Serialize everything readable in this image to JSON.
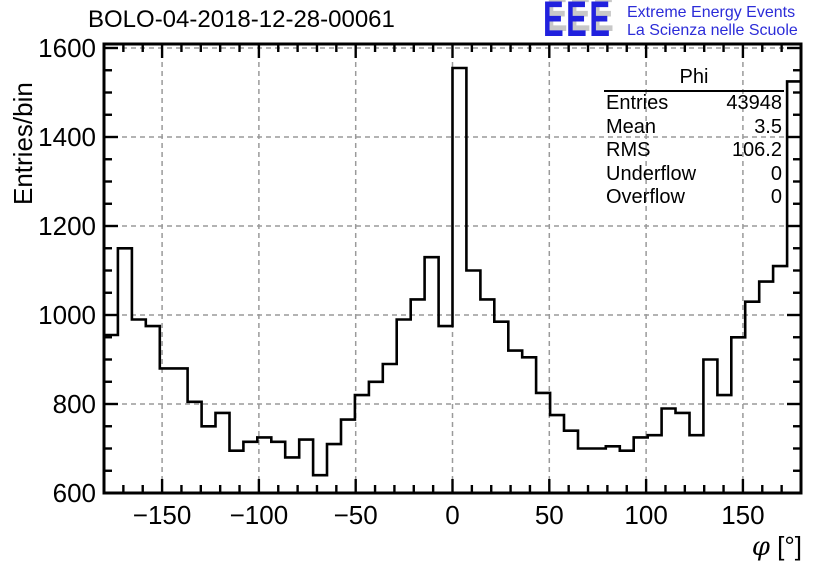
{
  "title": "BOLO-04-2018-12-28-00061",
  "logo": {
    "acronym": "EEE",
    "line1": "Extreme Energy Events",
    "line2": "La Scienza nelle Scuole",
    "acronym_color": "#2121de",
    "text_color": "#2c2cd8"
  },
  "stats": {
    "title": "Phi",
    "rows": [
      {
        "label": "Entries",
        "value": "43948"
      },
      {
        "label": "Mean",
        "value": "3.5"
      },
      {
        "label": "RMS",
        "value": "106.2"
      },
      {
        "label": "Underflow",
        "value": "0"
      },
      {
        "label": "Overflow",
        "value": "0"
      }
    ]
  },
  "chart_data": {
    "type": "bar",
    "style": "step-histogram",
    "title": "BOLO-04-2018-12-28-00061",
    "xlabel": "φ [°]",
    "xlabel_parts": {
      "symbol": "φ",
      "units": " [°]"
    },
    "ylabel": "Entries/bin",
    "xlim": [
      -180,
      180
    ],
    "ylim": [
      600,
      1609
    ],
    "bin_start": -180,
    "bin_width": 7.2,
    "values": [
      955,
      1150,
      990,
      975,
      880,
      880,
      805,
      750,
      780,
      695,
      715,
      725,
      715,
      680,
      720,
      640,
      710,
      765,
      820,
      850,
      890,
      990,
      1035,
      1130,
      975,
      1555,
      1100,
      1035,
      985,
      920,
      905,
      825,
      775,
      740,
      700,
      700,
      705,
      695,
      725,
      730,
      790,
      780,
      730,
      900,
      820,
      950,
      1030,
      1075,
      1110,
      1525
    ],
    "xticks": {
      "major": [
        -150,
        -100,
        -50,
        0,
        50,
        100,
        150
      ],
      "labels": [
        "−150",
        "−100",
        "−50",
        "0",
        "50",
        "100",
        "150"
      ],
      "minor_step": 10
    },
    "yticks": {
      "major": [
        600,
        800,
        1000,
        1200,
        1400,
        1600
      ],
      "labels": [
        "600",
        "800",
        "1000",
        "1200",
        "1400",
        "1600"
      ],
      "minor_step": 50
    },
    "grid": "dashed",
    "legend": "none",
    "line_color": "#000000",
    "grid_color": "#9a9a9a"
  }
}
